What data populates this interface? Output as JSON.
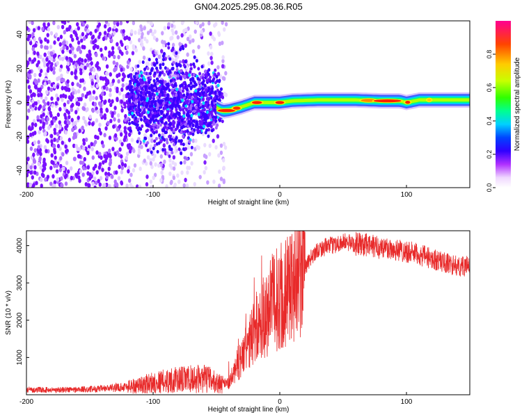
{
  "title": "GN04.2025.295.08.36.R05",
  "chart_data": [
    {
      "type": "heatmap",
      "xlabel": "Height of straight line (km)",
      "ylabel": "Frequency (Hz)",
      "xlim": [
        -200,
        150
      ],
      "ylim": [
        -50,
        48
      ],
      "xticks": [
        -200,
        -100,
        0,
        100
      ],
      "xtick_labels": [
        "-200",
        "-100",
        "0",
        "100"
      ],
      "yticks": [
        -40,
        -20,
        0,
        20,
        40
      ],
      "ytick_labels": [
        "-40",
        "-20",
        "0",
        "20",
        "40"
      ],
      "colorbar": {
        "label": "Normalized spectral amplitude",
        "range": [
          0,
          1
        ],
        "ticks": [
          0.0,
          0.2,
          0.4,
          0.6,
          0.8
        ],
        "tick_labels": [
          "0.0",
          "0.2",
          "0.4",
          "0.6",
          "0.8"
        ],
        "colors": [
          "#ffffff",
          "#d8b8f0",
          "#9a40ff",
          "#5a00ff",
          "#0000ff",
          "#00ccff",
          "#00ff66",
          "#88ff00",
          "#ffff00",
          "#ffaa00",
          "#ff3300",
          "#ff0099"
        ]
      },
      "ridge_frequency_hz": [
        [
          -50,
          -3
        ],
        [
          -45,
          -5
        ],
        [
          -40,
          -4.5
        ],
        [
          -30,
          -2.5
        ],
        [
          -20,
          0
        ],
        [
          -10,
          0
        ],
        [
          0,
          0
        ],
        [
          10,
          1
        ],
        [
          30,
          1.5
        ],
        [
          60,
          1.5
        ],
        [
          80,
          1
        ],
        [
          95,
          1
        ],
        [
          100,
          0
        ],
        [
          110,
          1.5
        ],
        [
          150,
          1.5
        ]
      ]
    },
    {
      "type": "line",
      "xlabel": "Height of straight line (km)",
      "ylabel": "SNR (10 * v/v)",
      "xlim": [
        -200,
        150
      ],
      "ylim": [
        0,
        4400
      ],
      "xticks": [
        -200,
        -100,
        0,
        100
      ],
      "xtick_labels": [
        "-200",
        "-100",
        "0",
        "100"
      ],
      "yticks": [
        1000,
        2000,
        3000,
        4000
      ],
      "ytick_labels": [
        "1000",
        "2000",
        "3000",
        "4000"
      ],
      "color": "#e82a2a",
      "series": [
        {
          "name": "SNR",
          "x": [
            -200,
            -180,
            -160,
            -140,
            -120,
            -110,
            -100,
            -90,
            -80,
            -70,
            -60,
            -55,
            -50,
            -45,
            -40,
            -35,
            -30,
            -25,
            -20,
            -15,
            -10,
            -5,
            0,
            5,
            10,
            15,
            20,
            25,
            30,
            40,
            50,
            60,
            70,
            80,
            90,
            100,
            110,
            120,
            130,
            140,
            150
          ],
          "y": [
            130,
            130,
            140,
            160,
            220,
            260,
            330,
            370,
            400,
            420,
            430,
            400,
            320,
            280,
            300,
            700,
            1000,
            1300,
            1700,
            2000,
            2200,
            2500,
            2600,
            2800,
            2900,
            3100,
            3400,
            3700,
            3900,
            4000,
            4100,
            4050,
            4000,
            3950,
            3900,
            3850,
            3750,
            3650,
            3550,
            3450,
            3450
          ]
        }
      ]
    }
  ]
}
